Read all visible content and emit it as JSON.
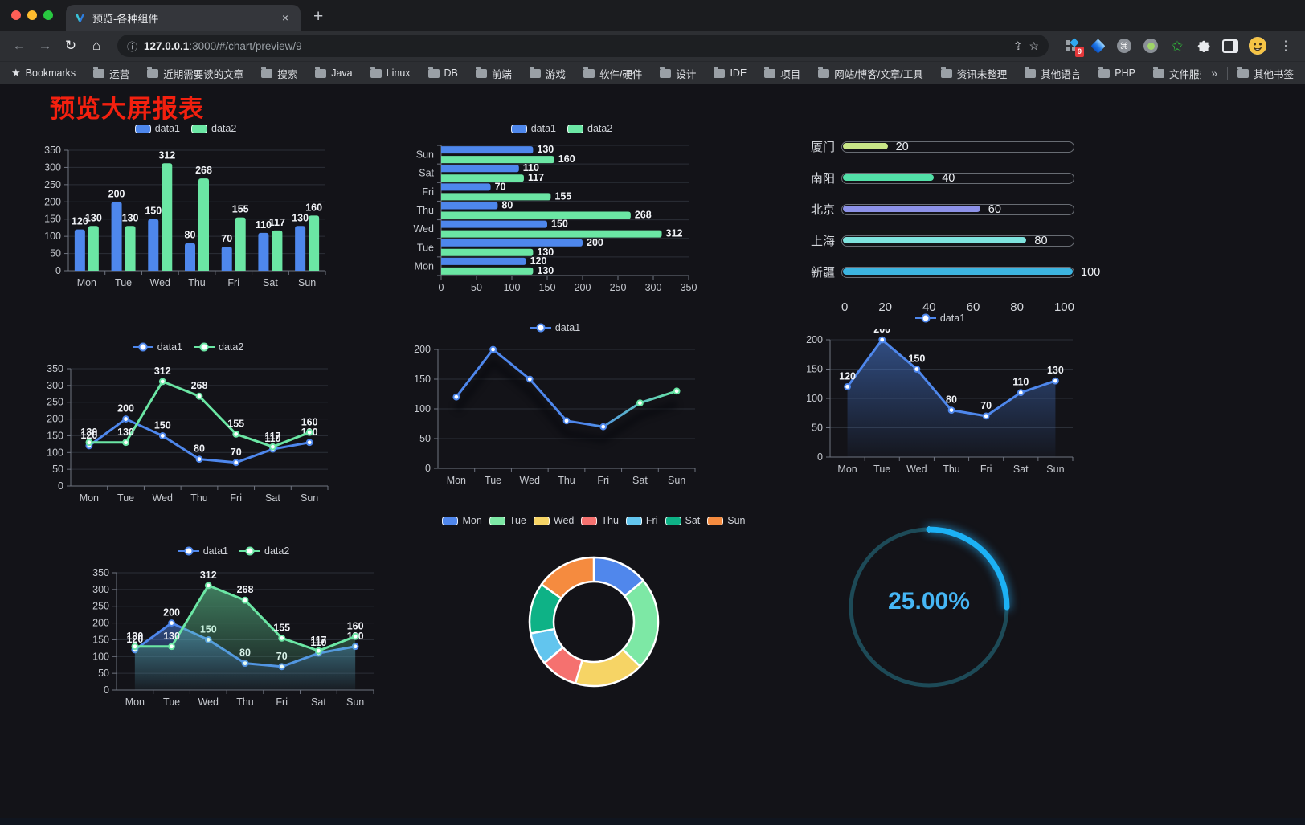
{
  "browser": {
    "tab": {
      "title": "预览-各种组件"
    },
    "url": {
      "host": "127.0.0.1",
      "rest": ":3000/#/chart/preview/9"
    },
    "extensions_badge": "9",
    "bookmarks_bar": {
      "items": [
        {
          "icon": "star",
          "label": "Bookmarks"
        },
        {
          "icon": "folder",
          "label": "运营"
        },
        {
          "icon": "folder",
          "label": "近期需要读的文章"
        },
        {
          "icon": "folder",
          "label": "搜索"
        },
        {
          "icon": "folder",
          "label": "Java"
        },
        {
          "icon": "folder",
          "label": "Linux"
        },
        {
          "icon": "folder",
          "label": "DB"
        },
        {
          "icon": "folder",
          "label": "前端"
        },
        {
          "icon": "folder",
          "label": "游戏"
        },
        {
          "icon": "folder",
          "label": "软件/硬件"
        },
        {
          "icon": "folder",
          "label": "设计"
        },
        {
          "icon": "folder",
          "label": "IDE"
        },
        {
          "icon": "folder",
          "label": "项目"
        },
        {
          "icon": "folder",
          "label": "网站/博客/文章/工具"
        },
        {
          "icon": "folder",
          "label": "资讯未整理"
        },
        {
          "icon": "folder",
          "label": "其他语言"
        },
        {
          "icon": "folder",
          "label": "PHP"
        },
        {
          "icon": "folder",
          "label": "文件服务器"
        }
      ],
      "overflow": "»",
      "other": {
        "icon": "folder",
        "label": "其他书签"
      }
    }
  },
  "icons": {
    "back": "←",
    "forward": "→",
    "reload": "↻",
    "home": "⌂",
    "info": "ⓘ",
    "share": "⇪",
    "star": "☆",
    "close": "×",
    "new_tab": "+",
    "kebab": "⋮",
    "command": "⌘",
    "green_star": "✩",
    "bookmarks_star": "★",
    "avatar_face": "😃"
  },
  "page": {
    "title": "预览大屏报表"
  },
  "chart_data": [
    {
      "type": "bar",
      "legend": true,
      "categories": [
        "Mon",
        "Tue",
        "Wed",
        "Thu",
        "Fri",
        "Sat",
        "Sun"
      ],
      "series": [
        {
          "name": "data1",
          "color": "#4e87ec",
          "values": [
            120,
            200,
            150,
            80,
            70,
            110,
            130
          ]
        },
        {
          "name": "data2",
          "color": "#6be6a4",
          "values": [
            130,
            130,
            312,
            268,
            155,
            117,
            160
          ]
        }
      ],
      "ylim": [
        0,
        350
      ],
      "ystep": 50,
      "grid": true
    },
    {
      "type": "hbar",
      "legend": true,
      "categories": [
        "Mon",
        "Tue",
        "Wed",
        "Thu",
        "Fri",
        "Sat",
        "Sun"
      ],
      "category_display": "Sun at top, Mon at bottom",
      "series": [
        {
          "name": "data1",
          "color": "#4e87ec",
          "values": [
            120,
            200,
            150,
            80,
            70,
            110,
            130
          ]
        },
        {
          "name": "data2",
          "color": "#6be6a4",
          "values": [
            130,
            130,
            312,
            268,
            155,
            117,
            160
          ]
        }
      ],
      "xlim": [
        0,
        350
      ],
      "xstep": 50,
      "grid": true
    },
    {
      "type": "progress",
      "max": 100,
      "axis_ticks": [
        0,
        20,
        40,
        60,
        80,
        100
      ],
      "items": [
        {
          "label": "厦门",
          "value": 20,
          "color": "#c9e687"
        },
        {
          "label": "南阳",
          "value": 40,
          "color": "#52e0a8"
        },
        {
          "label": "北京",
          "value": 60,
          "color": "#8d92e8"
        },
        {
          "label": "上海",
          "value": 80,
          "color": "#7fe3de"
        },
        {
          "label": "新疆",
          "value": 100,
          "color": "#3cb4e0"
        }
      ]
    },
    {
      "type": "line",
      "legend": true,
      "labels": true,
      "categories": [
        "Mon",
        "Tue",
        "Wed",
        "Thu",
        "Fri",
        "Sat",
        "Sun"
      ],
      "series": [
        {
          "name": "data1",
          "color": "#4e87ec",
          "values": [
            120,
            200,
            150,
            80,
            70,
            110,
            130
          ]
        },
        {
          "name": "data2",
          "color": "#6be6a4",
          "values": [
            130,
            130,
            312,
            268,
            155,
            117,
            160
          ]
        }
      ],
      "ylim": [
        0,
        350
      ],
      "ystep": 50,
      "grid": true
    },
    {
      "type": "line",
      "legend": true,
      "labels": false,
      "shadow": true,
      "categories": [
        "Mon",
        "Tue",
        "Wed",
        "Thu",
        "Fri",
        "Sat",
        "Sun"
      ],
      "series": [
        {
          "name": "data1",
          "color": "#4e87ec",
          "gradient_to": "#68e6a3",
          "values": [
            120,
            200,
            150,
            80,
            70,
            110,
            130
          ]
        }
      ],
      "ylim": [
        0,
        200
      ],
      "ystep": 50,
      "grid": true
    },
    {
      "type": "line",
      "legend": true,
      "labels": true,
      "categories": [
        "Mon",
        "Tue",
        "Wed",
        "Thu",
        "Fri",
        "Sat",
        "Sun"
      ],
      "series": [
        {
          "name": "data1",
          "color": "#4e87ec",
          "area": true,
          "values": [
            120,
            200,
            150,
            80,
            70,
            110,
            130
          ]
        }
      ],
      "ylim": [
        0,
        200
      ],
      "ystep": 50,
      "grid": true
    },
    {
      "type": "line",
      "legend": true,
      "labels": true,
      "categories": [
        "Mon",
        "Tue",
        "Wed",
        "Thu",
        "Fri",
        "Sat",
        "Sun"
      ],
      "series": [
        {
          "name": "data1",
          "color": "#4e87ec",
          "area": true,
          "values": [
            120,
            200,
            150,
            80,
            70,
            110,
            130
          ]
        },
        {
          "name": "data2",
          "color": "#6be6a4",
          "area": true,
          "values": [
            130,
            130,
            312,
            268,
            155,
            117,
            160
          ]
        }
      ],
      "ylim": [
        0,
        350
      ],
      "ystep": 50,
      "grid": true
    },
    {
      "type": "donut",
      "legend": true,
      "legend_position": "top",
      "items": [
        {
          "label": "Mon",
          "value": 120,
          "color": "#5087ec"
        },
        {
          "label": "Tue",
          "value": 200,
          "color": "#7de8a5"
        },
        {
          "label": "Wed",
          "value": 150,
          "color": "#f6d465"
        },
        {
          "label": "Thu",
          "value": 80,
          "color": "#f5716f"
        },
        {
          "label": "Fri",
          "value": 70,
          "color": "#62c5ee"
        },
        {
          "label": "Sat",
          "value": 110,
          "color": "#0eb286"
        },
        {
          "label": "Sun",
          "value": 130,
          "color": "#f58b3f"
        }
      ]
    },
    {
      "type": "gauge",
      "value": 25,
      "display": "25.00%",
      "color": "#1cb1f5",
      "track_color": "#1d4a57",
      "text_color": "#46b7f6"
    }
  ]
}
